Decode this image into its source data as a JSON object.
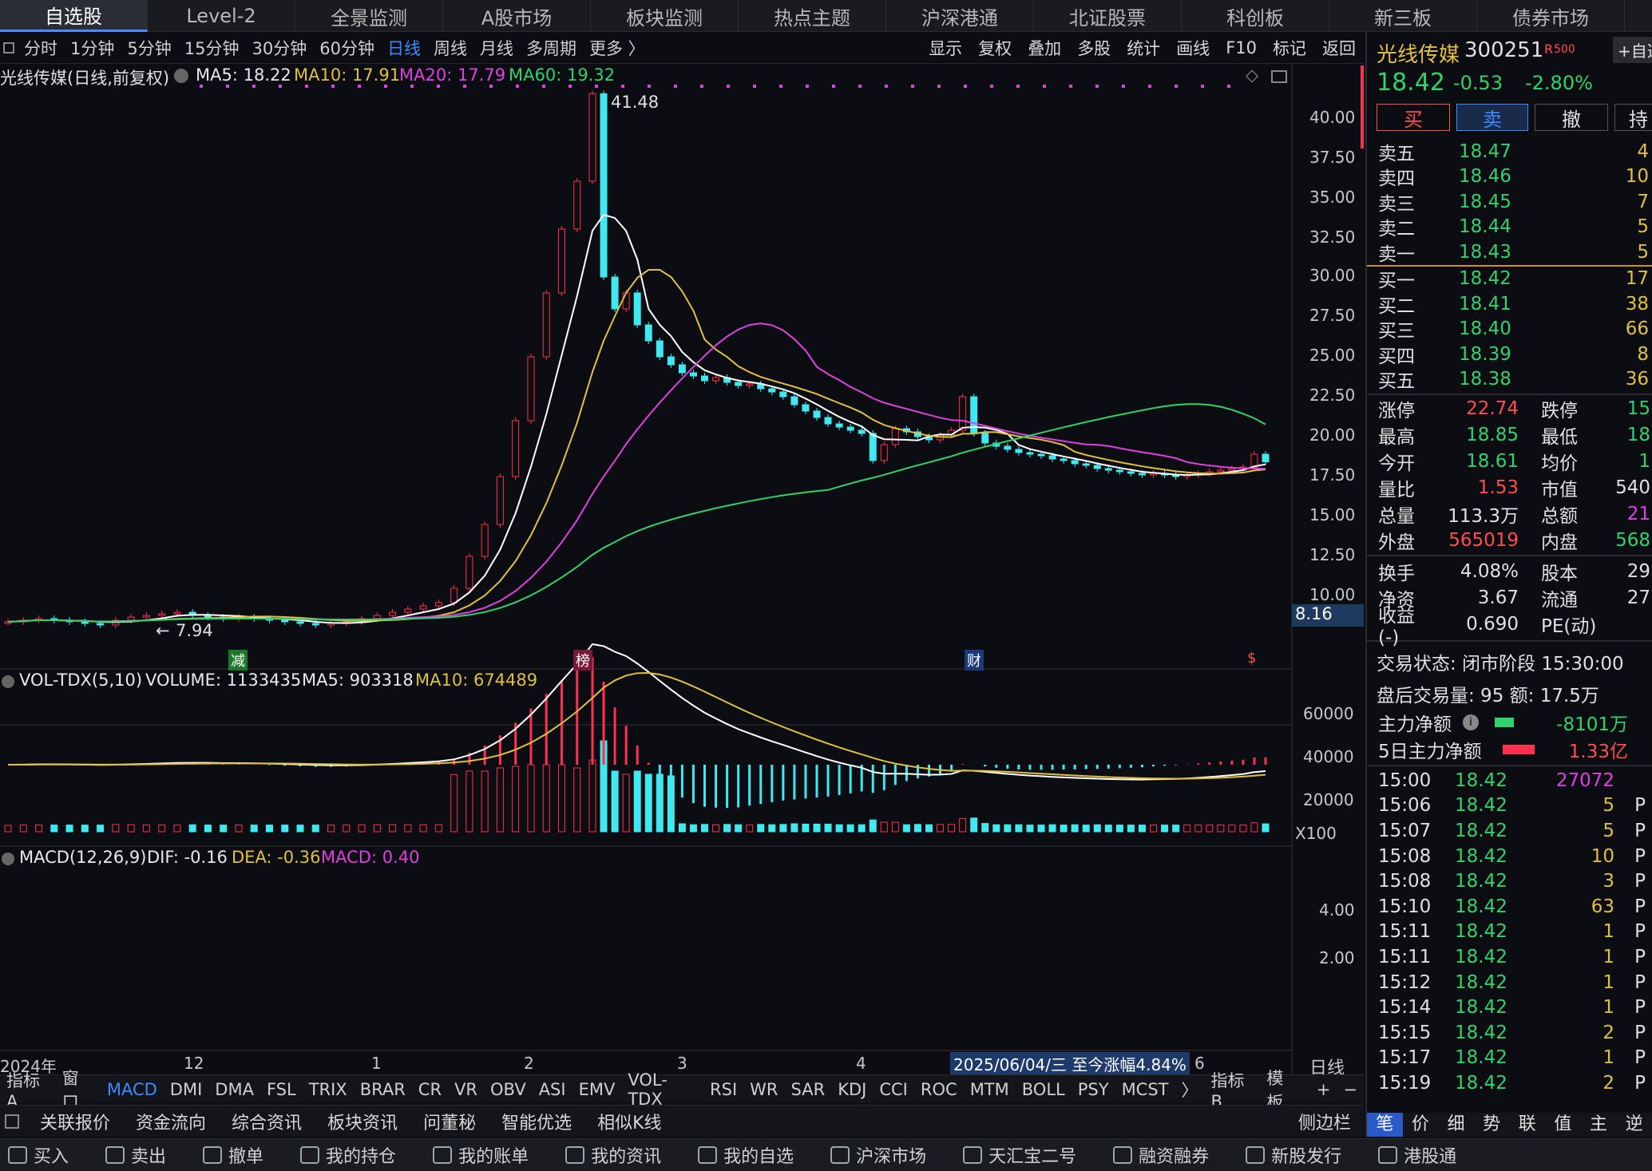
{
  "topnav": [
    "自选股",
    "Level-2",
    "全景监测",
    "A股市场",
    "板块监测",
    "热点主题",
    "沪深港通",
    "北证股票",
    "科创板",
    "新三板",
    "债券市场"
  ],
  "periods": [
    "分时",
    "1分钟",
    "5分钟",
    "15分钟",
    "30分钟",
    "60分钟",
    "日线",
    "周线",
    "月线",
    "多周期",
    "更多 〉"
  ],
  "tools": [
    "显示",
    "复权",
    "叠加",
    "多股",
    "统计",
    "画线",
    "F10",
    "标记",
    "返回"
  ],
  "chart_title": "光线传媒(日线,前复权)",
  "ma": {
    "ma5": "MA5: 18.22",
    "ma10": "MA10: 17.91",
    "ma20": "MA20: 17.79",
    "ma60": "MA60: 19.32"
  },
  "vol": {
    "title": "VOL-TDX(5,10)",
    "volume": "VOLUME: 1133435",
    "ma5": "MA5: 903318",
    "ma10": "MA10: 674489",
    "unit": "X100"
  },
  "macd": {
    "title": "MACD(12,26,9)",
    "dif": "DIF: -0.16",
    "dea": "DEA: -0.36",
    "macd": "MACD: 0.40"
  },
  "price_axis": [
    "40.00",
    "37.50",
    "35.00",
    "32.50",
    "30.00",
    "27.50",
    "25.00",
    "22.50",
    "20.00",
    "17.50",
    "15.00",
    "12.50",
    "10.00"
  ],
  "last_price_tag": "8.16",
  "high_label": "41.48",
  "low_label": "7.94",
  "vol_axis": [
    "60000",
    "40000",
    "20000"
  ],
  "macd_axis": [
    "4.00",
    "2.00"
  ],
  "date_axis": [
    "2024年",
    "12",
    "1",
    "2",
    "3",
    "4",
    "6"
  ],
  "date_tip": "2025/06/04/三  至今涨幅4.84%",
  "daily_btn": "日线",
  "markers": {
    "m1": "减",
    "m2": "榜",
    "m3": "财",
    "m4": "$"
  },
  "indicators": [
    "指标A",
    "窗口",
    "MACD",
    "DMI",
    "DMA",
    "FSL",
    "TRIX",
    "BRAR",
    "CR",
    "VR",
    "OBV",
    "ASI",
    "EMV",
    "VOL-TDX",
    "RSI",
    "WR",
    "SAR",
    "KDJ",
    "CCI",
    "ROC",
    "MTM",
    "BOLL",
    "PSY",
    "MCST",
    "〉",
    "指标B",
    "模 板",
    "+",
    "−"
  ],
  "bottom_tabs": [
    "关联报价",
    "资金流向",
    "综合资讯",
    "板块资讯",
    "问董秘",
    "智能优选",
    "相似K线"
  ],
  "sidebar_btn": "侧边栏",
  "stock": {
    "name": "光线传媒",
    "code": "300251",
    "flag": "R",
    "zixuan": "自选",
    "price": "18.42",
    "change": "-0.53",
    "pct": "-2.80%"
  },
  "trade_btns": [
    "买",
    "卖",
    "撤",
    "持"
  ],
  "asks": [
    {
      "k": "卖五",
      "v": "18.47",
      "n": "4"
    },
    {
      "k": "卖四",
      "v": "18.46",
      "n": "10"
    },
    {
      "k": "卖三",
      "v": "18.45",
      "n": "7"
    },
    {
      "k": "卖二",
      "v": "18.44",
      "n": "5"
    },
    {
      "k": "卖一",
      "v": "18.43",
      "n": "5"
    }
  ],
  "bids": [
    {
      "k": "买一",
      "v": "18.42",
      "n": "17"
    },
    {
      "k": "买二",
      "v": "18.41",
      "n": "38"
    },
    {
      "k": "买三",
      "v": "18.40",
      "n": "66"
    },
    {
      "k": "买四",
      "v": "18.39",
      "n": "8"
    },
    {
      "k": "买五",
      "v": "18.38",
      "n": "36"
    }
  ],
  "stats": [
    {
      "k": "涨停",
      "v": "22.74",
      "vc": "#ff4d4d",
      "k2": "跌停",
      "v2": "15",
      "vc2": "#2fd36b"
    },
    {
      "k": "最高",
      "v": "18.85",
      "vc": "#2fd36b",
      "k2": "最低",
      "v2": "18",
      "vc2": "#2fd36b"
    },
    {
      "k": "今开",
      "v": "18.61",
      "vc": "#2fd36b",
      "k2": "均价",
      "v2": "1",
      "vc2": "#2fd36b"
    },
    {
      "k": "量比",
      "v": "1.53",
      "vc": "#ff4d4d",
      "k2": "市值",
      "v2": "540",
      "vc2": "#e0e0e0"
    },
    {
      "k": "总量",
      "v": "113.3万",
      "vc": "#e0e0e0",
      "k2": "总额",
      "v2": "21",
      "vc2": "#e040e0"
    },
    {
      "k": "外盘",
      "v": "565019",
      "vc": "#ff4d4d",
      "k2": "内盘",
      "v2": "568",
      "vc2": "#2fd36b"
    }
  ],
  "stats2": [
    {
      "k": "换手",
      "v": "4.08%",
      "k2": "股本",
      "v2": "29"
    },
    {
      "k": "净资",
      "v": "3.67",
      "k2": "流通",
      "v2": "27"
    },
    {
      "k": "收益(-)",
      "v": "0.690",
      "k2": "PE(动)",
      "v2": ""
    }
  ],
  "status": "交易状态: 闭市阶段 15:30:00",
  "after": "盘后交易量: 95  额: 17.5万",
  "flow1": {
    "k": "主力净额",
    "v": "-8101万"
  },
  "flow2": {
    "k": "5日主力净额",
    "v": "1.33亿"
  },
  "ticks": [
    {
      "t": "15:00",
      "p": "18.42",
      "v": "27072",
      "d": "",
      "vc": "#e040e0"
    },
    {
      "t": "15:06",
      "p": "18.42",
      "v": "5",
      "d": "P",
      "vc": "#e0c040"
    },
    {
      "t": "15:07",
      "p": "18.42",
      "v": "5",
      "d": "P",
      "vc": "#e0c040"
    },
    {
      "t": "15:08",
      "p": "18.42",
      "v": "10",
      "d": "P",
      "vc": "#e0c040"
    },
    {
      "t": "15:08",
      "p": "18.42",
      "v": "3",
      "d": "P",
      "vc": "#e0c040"
    },
    {
      "t": "15:10",
      "p": "18.42",
      "v": "63",
      "d": "P",
      "vc": "#e0c040"
    },
    {
      "t": "15:11",
      "p": "18.42",
      "v": "1",
      "d": "P",
      "vc": "#e0c040"
    },
    {
      "t": "15:11",
      "p": "18.42",
      "v": "1",
      "d": "P",
      "vc": "#e0c040"
    },
    {
      "t": "15:12",
      "p": "18.42",
      "v": "1",
      "d": "P",
      "vc": "#e0c040"
    },
    {
      "t": "15:14",
      "p": "18.42",
      "v": "1",
      "d": "P",
      "vc": "#e0c040"
    },
    {
      "t": "15:15",
      "p": "18.42",
      "v": "2",
      "d": "P",
      "vc": "#e0c040"
    },
    {
      "t": "15:17",
      "p": "18.42",
      "v": "1",
      "d": "P",
      "vc": "#e0c040"
    },
    {
      "t": "15:19",
      "p": "18.42",
      "v": "2",
      "d": "P",
      "vc": "#e0c040"
    }
  ],
  "right_tabs": [
    "笔",
    "价",
    "细",
    "势",
    "联",
    "值",
    "主",
    "逆"
  ],
  "taskbar": [
    "买入",
    "卖出",
    "撤单",
    "我的持仓",
    "我的账单",
    "我的资讯",
    "我的自选",
    "沪深市场",
    "天汇宝二号",
    "融资融券",
    "新股发行",
    "港股通"
  ],
  "chart_data": {
    "type": "candlestick",
    "closes": [
      8.4,
      8.5,
      8.6,
      8.5,
      8.4,
      8.3,
      8.2,
      8.5,
      8.7,
      8.8,
      8.9,
      9.0,
      8.8,
      8.7,
      8.6,
      8.7,
      8.6,
      8.5,
      8.4,
      8.3,
      8.2,
      8.3,
      8.4,
      8.6,
      8.8,
      9.0,
      9.2,
      9.4,
      9.6,
      10.5,
      12.5,
      14.5,
      17.5,
      21,
      25,
      29,
      33,
      36,
      41.48,
      30,
      28,
      29,
      27,
      26,
      25,
      24.5,
      24,
      23.8,
      23.5,
      23.7,
      23.4,
      23.2,
      23.3,
      23.0,
      22.8,
      22.5,
      22,
      21.6,
      21.2,
      20.8,
      20.6,
      20.4,
      20.2,
      18.5,
      19.5,
      20.5,
      20.3,
      20,
      19.8,
      20.1,
      20.4,
      22.5,
      20.2,
      19.6,
      19.4,
      19.2,
      19.0,
      18.9,
      18.8,
      18.6,
      18.5,
      18.3,
      18.2,
      18.0,
      17.9,
      17.8,
      17.7,
      17.6,
      17.7,
      17.6,
      17.5,
      17.6,
      17.7,
      17.8,
      17.9,
      18.0,
      18.1,
      18.9,
      18.42
    ]
  }
}
